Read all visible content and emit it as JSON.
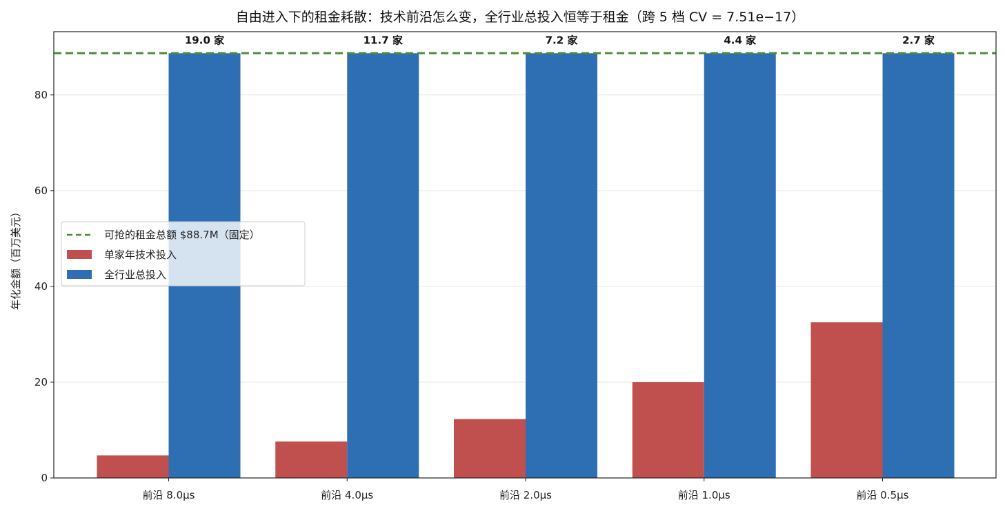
{
  "chart_data": {
    "type": "bar",
    "title": "自由进入下的租金耗散：技术前沿怎么变，全行业总投入恒等于租金（跨 5 档 CV = 7.51e−17）",
    "xlabel": "",
    "ylabel": "年化金额（百万美元）",
    "ylim": [
      0,
      93.2
    ],
    "yticks": [
      "0",
      "20",
      "40",
      "60",
      "80"
    ],
    "ytick_values": [
      0,
      20,
      40,
      60,
      80
    ],
    "grid": "horizontal",
    "legend_position": "center-left",
    "categories": [
      "前沿 8.0μs",
      "前沿 4.0μs",
      "前沿 2.0μs",
      "前沿 1.0μs",
      "前沿 0.5μs"
    ],
    "series": [
      {
        "name": "单家年技术投入",
        "color": "#c0504d",
        "values": [
          4.7,
          7.6,
          12.3,
          20.0,
          32.5
        ]
      },
      {
        "name": "全行业总投入",
        "color": "#2e6eb2",
        "values": [
          88.7,
          88.7,
          88.7,
          88.7,
          88.7
        ]
      }
    ],
    "reference_line": {
      "name": "可抢的租金总额 $88.7M（固定）",
      "value": 88.7,
      "color": "#4e8a3a",
      "style": "dashed"
    },
    "bar_annotations": [
      "19.0 家",
      "11.7 家",
      "7.2 家",
      "4.4 家",
      "2.7 家"
    ]
  }
}
